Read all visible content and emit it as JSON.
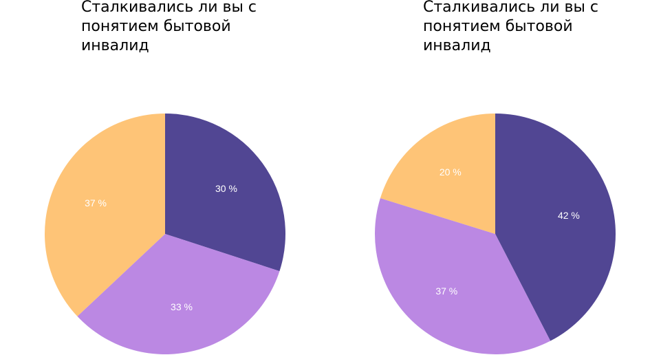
{
  "chart_data": [
    {
      "type": "pie",
      "title": "Сталкивались ли вы с понятием бытовой инвалид",
      "slices": [
        {
          "value": 30,
          "label": "30 %",
          "color": "#514693"
        },
        {
          "value": 33,
          "label": "33 %",
          "color": "#bb88e3"
        },
        {
          "value": 37,
          "label": "37 %",
          "color": "#fec477"
        }
      ]
    },
    {
      "type": "pie",
      "title": "Сталкивались ли вы с понятием бытовой инвалид",
      "slices": [
        {
          "value": 42,
          "label": "42 %",
          "color": "#514693"
        },
        {
          "value": 37,
          "label": "37 %",
          "color": "#bb88e3"
        },
        {
          "value": 20,
          "label": "20 %",
          "color": "#fec477"
        }
      ]
    }
  ]
}
